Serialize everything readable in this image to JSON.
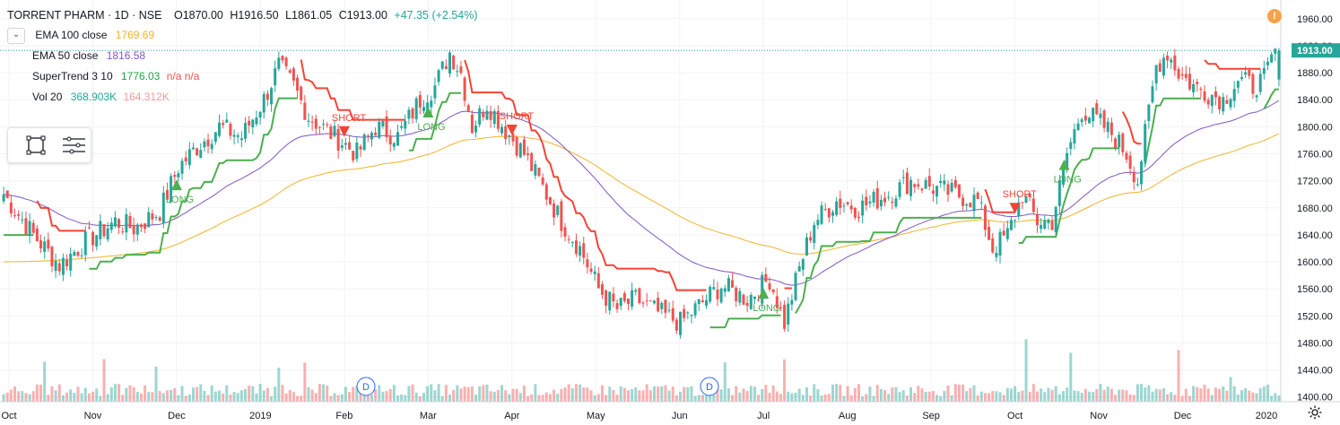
{
  "header": {
    "symbol": "TORRENT PHARM · 1D · NSE",
    "open": "O1870.00",
    "high": "H1916.50",
    "low": "L1861.05",
    "close": "C1913.00",
    "change": "+47.35 (+2.54%)"
  },
  "indicators": [
    {
      "label": "EMA 100 close",
      "value": "1769.69",
      "value2": "",
      "color": "#f0b429"
    },
    {
      "label": "EMA 50 close",
      "value": "1816.58",
      "value2": "",
      "color": "#7e57c2"
    },
    {
      "label": "SuperTrend 3 10",
      "value": "1776.03",
      "value2": "n/a  n/a",
      "color": "#22a34a"
    },
    {
      "label": "Vol 20",
      "value": "368.903K",
      "value2": "164.312K",
      "color": "#26a69a"
    }
  ],
  "colors": {
    "up": "#26a69a",
    "down": "#ef5350",
    "ema100": "#f0b429",
    "ema50": "#7e57c2",
    "st_up": "#4caf50",
    "st_down": "#f44336",
    "last_price_bg": "#26a69a"
  },
  "last_price_label": "1913.00",
  "chart_data": {
    "type": "candlestick",
    "x_ticks": [
      "Oct",
      "Nov",
      "Dec",
      "2019",
      "Feb",
      "Mar",
      "Apr",
      "May",
      "Jun",
      "Jul",
      "Aug",
      "Sep",
      "Oct",
      "Nov",
      "Dec",
      "2020"
    ],
    "y_ticks": [
      1400,
      1440,
      1480,
      1520,
      1560,
      1600,
      1640,
      1680,
      1720,
      1760,
      1800,
      1840,
      1880,
      1920,
      1960
    ],
    "ylim": [
      1393,
      1977
    ],
    "last_price": 1913.0,
    "close_anchors": [
      [
        0,
        1700
      ],
      [
        8,
        1640
      ],
      [
        15,
        1595
      ],
      [
        22,
        1630
      ],
      [
        30,
        1660
      ],
      [
        35,
        1650
      ],
      [
        42,
        1675
      ],
      [
        47,
        1740
      ],
      [
        52,
        1770
      ],
      [
        58,
        1800
      ],
      [
        64,
        1785
      ],
      [
        70,
        1840
      ],
      [
        74,
        1890
      ],
      [
        78,
        1860
      ],
      [
        82,
        1815
      ],
      [
        88,
        1790
      ],
      [
        95,
        1760
      ],
      [
        100,
        1800
      ],
      [
        106,
        1785
      ],
      [
        112,
        1840
      ],
      [
        116,
        1860
      ],
      [
        120,
        1910
      ],
      [
        123,
        1880
      ],
      [
        126,
        1800
      ],
      [
        130,
        1835
      ],
      [
        135,
        1795
      ],
      [
        140,
        1760
      ],
      [
        144,
        1720
      ],
      [
        150,
        1660
      ],
      [
        155,
        1620
      ],
      [
        160,
        1560
      ],
      [
        165,
        1530
      ],
      [
        170,
        1545
      ],
      [
        176,
        1525
      ],
      [
        182,
        1510
      ],
      [
        188,
        1540
      ],
      [
        193,
        1565
      ],
      [
        200,
        1545
      ],
      [
        206,
        1575
      ],
      [
        210,
        1510
      ],
      [
        214,
        1590
      ],
      [
        218,
        1660
      ],
      [
        224,
        1690
      ],
      [
        230,
        1680
      ],
      [
        238,
        1700
      ],
      [
        244,
        1720
      ],
      [
        250,
        1710
      ],
      [
        256,
        1700
      ],
      [
        262,
        1690
      ],
      [
        266,
        1620
      ],
      [
        270,
        1640
      ],
      [
        274,
        1700
      ],
      [
        278,
        1660
      ],
      [
        282,
        1660
      ],
      [
        286,
        1760
      ],
      [
        290,
        1825
      ],
      [
        294,
        1810
      ],
      [
        298,
        1790
      ],
      [
        302,
        1760
      ],
      [
        305,
        1720
      ],
      [
        310,
        1890
      ],
      [
        313,
        1910
      ],
      [
        316,
        1880
      ],
      [
        320,
        1860
      ],
      [
        324,
        1850
      ],
      [
        328,
        1840
      ],
      [
        332,
        1870
      ],
      [
        336,
        1860
      ],
      [
        339,
        1870
      ],
      [
        342,
        1913
      ]
    ],
    "signals": [
      {
        "type": "LONG",
        "x": "Dec"
      },
      {
        "type": "SHORT",
        "x": "Feb"
      },
      {
        "type": "LONG",
        "x": "Mar"
      },
      {
        "type": "SHORT",
        "x": "Apr"
      },
      {
        "type": "LONG",
        "x": "Jul"
      },
      {
        "type": "SHORT",
        "x": "Oct"
      },
      {
        "type": "LONG",
        "x": "Oct"
      }
    ],
    "event_markers": [
      "D",
      "D"
    ],
    "series": [
      "EMA 100 close",
      "EMA 50 close",
      "SuperTrend 3 10",
      "Vol 20"
    ]
  }
}
